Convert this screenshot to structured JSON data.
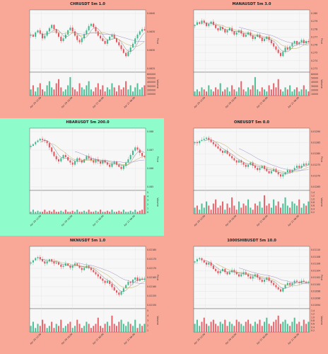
{
  "colors": {
    "page_bg": "#f9a898",
    "highlight_bg": "#8ffccb",
    "plot_bg": "#f7f7f7",
    "up": "#3cb98b",
    "down": "#e5545c",
    "ma1": "#7a7a7a",
    "ma2": "#b8a95a",
    "ma3": "#9a8fc0"
  },
  "chart_data": [
    {
      "type": "candlestick",
      "title": "CHRUSDT 5m 1.0",
      "highlighted": false,
      "ylabel": "Price",
      "volume_label": "Volume",
      "price_ticks": [
        "0.0640",
        "0.0635",
        "0.0630",
        "0.0625"
      ],
      "volume_ticks": [
        "600000",
        "500000",
        "400000",
        "300000",
        "200000",
        "100000"
      ],
      "x_ticks": [
        "Apr 20 12:00",
        "Apr 20 18:00",
        "Apr 21 00:00",
        "Apr 21 06:00"
      ],
      "shape": [
        0.62,
        0.58,
        0.66,
        0.7,
        0.64,
        0.55,
        0.6,
        0.68,
        0.74,
        0.8,
        0.72,
        0.65,
        0.58,
        0.5,
        0.55,
        0.62,
        0.7,
        0.75,
        0.68,
        0.6,
        0.52,
        0.48,
        0.55,
        0.63,
        0.7,
        0.78,
        0.82,
        0.76,
        0.68,
        0.6,
        0.55,
        0.5,
        0.45,
        0.52,
        0.58,
        0.62,
        0.55,
        0.48,
        0.42,
        0.35,
        0.28,
        0.22,
        0.3,
        0.38,
        0.45,
        0.55,
        0.62,
        0.68,
        0.72,
        0.7
      ],
      "volume": [
        0.3,
        0.5,
        0.2,
        0.4,
        0.6,
        0.3,
        0.2,
        0.5,
        0.7,
        0.4,
        0.3,
        0.6,
        0.8,
        0.4,
        0.2,
        0.3,
        0.5,
        0.9,
        0.4,
        0.3,
        0.2,
        0.6,
        0.4,
        0.3,
        0.5,
        0.7,
        0.3,
        0.2,
        0.4,
        0.6,
        0.3,
        0.5,
        0.2,
        0.4,
        0.3,
        0.6,
        0.4,
        0.2,
        0.5,
        0.3,
        0.4,
        0.7,
        0.3,
        0.5,
        0.2,
        0.4,
        0.6,
        0.3,
        0.4,
        0.5
      ]
    },
    {
      "type": "candlestick",
      "title": "MANAUSDT 5m 3.0",
      "highlighted": false,
      "ylabel": "Price",
      "volume_label": "Volume",
      "price_ticks": [
        "0.280",
        "0.279",
        "0.278",
        "0.277",
        "0.276",
        "0.275",
        "0.274",
        "0.273"
      ],
      "volume_ticks": [
        "60000",
        "50000",
        "40000",
        "30000",
        "20000",
        "10000"
      ],
      "x_ticks": [
        "Apr 20 12:00",
        "Apr 20 18:00",
        "Apr 21 00:00",
        "Apr 21 06:00"
      ],
      "shape": [
        0.8,
        0.85,
        0.82,
        0.88,
        0.84,
        0.78,
        0.82,
        0.86,
        0.8,
        0.74,
        0.7,
        0.76,
        0.72,
        0.66,
        0.7,
        0.74,
        0.68,
        0.62,
        0.66,
        0.7,
        0.64,
        0.58,
        0.62,
        0.66,
        0.6,
        0.54,
        0.58,
        0.62,
        0.56,
        0.5,
        0.54,
        0.58,
        0.52,
        0.46,
        0.4,
        0.34,
        0.28,
        0.22,
        0.3,
        0.38,
        0.34,
        0.4,
        0.46,
        0.5,
        0.44,
        0.48,
        0.52,
        0.46,
        0.5,
        0.48
      ],
      "volume": [
        0.2,
        0.3,
        0.2,
        0.4,
        0.3,
        0.2,
        0.5,
        0.3,
        0.2,
        0.4,
        0.3,
        0.6,
        0.2,
        0.3,
        0.4,
        0.2,
        0.5,
        0.3,
        0.2,
        0.4,
        0.7,
        0.3,
        0.2,
        0.4,
        0.3,
        0.5,
        0.9,
        0.3,
        0.2,
        0.4,
        0.3,
        0.2,
        0.5,
        0.3,
        0.6,
        0.4,
        0.8,
        0.3,
        0.2,
        0.4,
        0.3,
        0.5,
        0.2,
        0.3,
        0.4,
        0.2,
        0.3,
        0.5,
        0.3,
        0.2
      ]
    },
    {
      "type": "candlestick",
      "title": "HBARUSDT 5m 200.0",
      "highlighted": true,
      "ylabel": "Price",
      "volume_label": "Volume",
      "price_ticks": [
        "0.088",
        "0.087",
        "0.086",
        "0.085"
      ],
      "volume_ticks": [
        "5",
        "4",
        "3",
        "2",
        "1",
        "0"
      ],
      "x_ticks": [
        "Apr 20 12:00",
        "Apr 20 18:00",
        "Apr 21 00:00",
        "Apr 21 06:00"
      ],
      "shape": [
        0.75,
        0.78,
        0.82,
        0.85,
        0.88,
        0.86,
        0.84,
        0.8,
        0.72,
        0.64,
        0.56,
        0.5,
        0.46,
        0.52,
        0.58,
        0.54,
        0.48,
        0.44,
        0.4,
        0.46,
        0.52,
        0.48,
        0.44,
        0.5,
        0.56,
        0.52,
        0.48,
        0.44,
        0.5,
        0.46,
        0.42,
        0.48,
        0.44,
        0.4,
        0.36,
        0.42,
        0.46,
        0.4,
        0.36,
        0.32,
        0.38,
        0.44,
        0.5,
        0.58,
        0.66,
        0.72,
        0.68,
        0.62,
        0.56,
        0.54
      ],
      "volume": [
        0.1,
        0.2,
        0.1,
        0.15,
        0.1,
        0.1,
        0.2,
        0.1,
        0.15,
        0.1,
        0.2,
        0.1,
        0.1,
        0.15,
        0.1,
        0.2,
        0.1,
        0.1,
        0.15,
        0.1,
        0.2,
        0.1,
        0.1,
        0.15,
        0.1,
        0.2,
        0.1,
        0.1,
        0.15,
        0.1,
        0.2,
        0.1,
        0.1,
        0.15,
        0.1,
        0.2,
        0.1,
        0.1,
        0.15,
        0.1,
        0.2,
        0.1,
        0.1,
        0.15,
        0.1,
        0.2,
        0.1,
        0.15,
        0.2,
        0.9
      ]
    },
    {
      "type": "candlestick",
      "title": "ONEUSDT 5m 0.0",
      "highlighted": false,
      "ylabel": "Price",
      "volume_label": "Volume",
      "price_ticks": [
        "0.01290",
        "0.01285",
        "0.01280",
        "0.01275",
        "0.01270",
        "0.01265"
      ],
      "volume_ticks": [
        "1.4",
        "1.2",
        "1.0",
        "0.8",
        "0.6",
        "0.4",
        "0.2"
      ],
      "x_ticks": [
        "Apr 20 12:00",
        "Apr 20 18:00",
        "Apr 21 00:00",
        "Apr 21 06:00"
      ],
      "shape": [
        0.82,
        0.8,
        0.84,
        0.86,
        0.88,
        0.9,
        0.86,
        0.82,
        0.78,
        0.74,
        0.7,
        0.66,
        0.62,
        0.66,
        0.6,
        0.56,
        0.52,
        0.48,
        0.44,
        0.48,
        0.44,
        0.4,
        0.36,
        0.4,
        0.44,
        0.38,
        0.34,
        0.3,
        0.34,
        0.38,
        0.32,
        0.28,
        0.24,
        0.28,
        0.32,
        0.26,
        0.22,
        0.18,
        0.22,
        0.26,
        0.3,
        0.26,
        0.3,
        0.34,
        0.38,
        0.34,
        0.38,
        0.42,
        0.4,
        0.42
      ],
      "volume": [
        0.3,
        0.4,
        0.2,
        0.5,
        0.3,
        0.6,
        0.4,
        0.2,
        0.5,
        0.7,
        0.3,
        0.4,
        0.6,
        0.2,
        0.5,
        0.3,
        0.8,
        0.4,
        0.2,
        0.6,
        0.3,
        0.5,
        0.4,
        0.7,
        0.3,
        0.2,
        0.5,
        0.4,
        0.6,
        0.3,
        0.9,
        0.4,
        0.5,
        0.3,
        0.7,
        0.4,
        0.6,
        0.3,
        0.5,
        0.8,
        0.4,
        0.3,
        0.6,
        0.5,
        0.4,
        0.7,
        0.3,
        0.5,
        0.4,
        0.6
      ]
    },
    {
      "type": "candlestick",
      "title": "NKNUSDT 5m 1.0",
      "highlighted": false,
      "ylabel": "Price",
      "volume_label": "Volume",
      "price_ticks": [
        "0.02180",
        "0.02175",
        "0.02170",
        "0.02165",
        "0.02160",
        "0.02155",
        "0.02150"
      ],
      "volume_ticks": [
        "5",
        "4",
        "3",
        "2",
        "1"
      ],
      "x_ticks": [
        "Apr 20 12:00",
        "Apr 20 18:00",
        "Apr 21 00:00",
        "Apr 21 06:00"
      ],
      "shape": [
        0.78,
        0.82,
        0.86,
        0.88,
        0.84,
        0.8,
        0.76,
        0.8,
        0.84,
        0.8,
        0.76,
        0.78,
        0.74,
        0.7,
        0.72,
        0.76,
        0.72,
        0.68,
        0.72,
        0.76,
        0.72,
        0.68,
        0.64,
        0.68,
        0.72,
        0.68,
        0.64,
        0.6,
        0.56,
        0.52,
        0.48,
        0.44,
        0.4,
        0.44,
        0.38,
        0.32,
        0.26,
        0.22,
        0.18,
        0.24,
        0.3,
        0.36,
        0.42,
        0.4,
        0.46,
        0.5,
        0.44,
        0.48,
        0.46,
        0.48
      ],
      "volume": [
        0.3,
        0.5,
        0.2,
        0.4,
        0.3,
        0.6,
        0.4,
        0.2,
        0.3,
        0.5,
        0.2,
        0.4,
        0.3,
        0.6,
        0.2,
        0.3,
        0.4,
        0.5,
        0.2,
        0.3,
        0.6,
        0.4,
        0.2,
        0.3,
        0.5,
        0.4,
        0.2,
        0.3,
        0.4,
        0.7,
        0.3,
        0.2,
        0.4,
        0.5,
        0.3,
        0.8,
        0.4,
        0.3,
        0.5,
        0.6,
        0.4,
        0.3,
        0.5,
        0.4,
        0.3,
        0.6,
        0.2,
        0.4,
        0.3,
        0.4
      ]
    },
    {
      "type": "candlestick",
      "title": "1000SHIBUSDT 5m 10.0",
      "highlighted": false,
      "ylabel": "Price",
      "volume_label": "Volume",
      "price_ticks": [
        "0.01110",
        "0.01108",
        "0.01106",
        "0.01104",
        "0.01102",
        "0.01100",
        "0.01098",
        "0.01096",
        "0.01094"
      ],
      "volume_ticks": [
        "1.4",
        "1.2",
        "1.0",
        "0.8",
        "0.6",
        "0.4",
        "0.2"
      ],
      "x_ticks": [
        "Apr 20 12:00",
        "Apr 20 18:00",
        "Apr 21 00:00",
        "Apr 21 06:00"
      ],
      "shape": [
        0.8,
        0.84,
        0.86,
        0.82,
        0.78,
        0.74,
        0.78,
        0.72,
        0.66,
        0.62,
        0.58,
        0.62,
        0.66,
        0.6,
        0.56,
        0.6,
        0.64,
        0.6,
        0.56,
        0.52,
        0.56,
        0.6,
        0.56,
        0.52,
        0.48,
        0.52,
        0.56,
        0.5,
        0.46,
        0.42,
        0.46,
        0.5,
        0.44,
        0.4,
        0.36,
        0.32,
        0.28,
        0.24,
        0.3,
        0.36,
        0.4,
        0.36,
        0.4,
        0.44,
        0.42,
        0.4,
        0.44,
        0.42,
        0.4,
        0.42
      ],
      "volume": [
        0.4,
        0.6,
        0.3,
        0.5,
        0.7,
        0.4,
        0.3,
        0.5,
        0.6,
        0.4,
        0.3,
        0.5,
        0.4,
        0.6,
        0.3,
        0.5,
        0.4,
        0.3,
        0.6,
        0.5,
        0.4,
        0.3,
        0.5,
        0.6,
        0.4,
        0.3,
        0.5,
        0.4,
        0.6,
        0.3,
        0.5,
        0.7,
        0.4,
        0.3,
        0.5,
        0.6,
        0.8,
        0.4,
        0.5,
        0.6,
        0.4,
        0.3,
        0.5,
        0.7,
        0.4,
        0.5,
        0.3,
        0.6,
        0.4,
        0.5
      ]
    }
  ]
}
